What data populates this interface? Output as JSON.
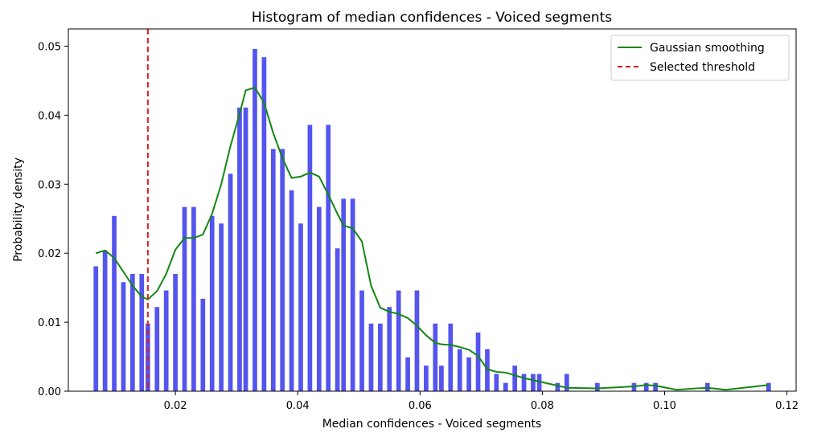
{
  "chart_data": {
    "type": "bar",
    "title": "Histogram of median confidences - Voiced segments",
    "xlabel": "Median confidences - Voiced segments",
    "ylabel": "Probability density",
    "xlim": [
      0.0025,
      0.1215
    ],
    "ylim": [
      0,
      0.0525
    ],
    "xticks": [
      0.02,
      0.04,
      0.06,
      0.08,
      0.1,
      0.12
    ],
    "xtick_labels": [
      "0.02",
      "0.04",
      "0.06",
      "0.08",
      "0.10",
      "0.12"
    ],
    "yticks": [
      0.0,
      0.01,
      0.02,
      0.03,
      0.04,
      0.05
    ],
    "ytick_labels": [
      "0.00",
      "0.01",
      "0.02",
      "0.03",
      "0.04",
      "0.05"
    ],
    "grid": false,
    "legend_position": "top-right",
    "bar_color": "#4b4bee",
    "bar_width": 0.00075,
    "bars": {
      "x": [
        0.007,
        0.0085,
        0.01,
        0.0115,
        0.013,
        0.0145,
        0.0155,
        0.017,
        0.0185,
        0.02,
        0.0215,
        0.023,
        0.0245,
        0.026,
        0.0275,
        0.029,
        0.0305,
        0.0315,
        0.033,
        0.0345,
        0.036,
        0.0375,
        0.039,
        0.0405,
        0.042,
        0.0435,
        0.045,
        0.0465,
        0.0475,
        0.049,
        0.0505,
        0.052,
        0.0535,
        0.055,
        0.0565,
        0.058,
        0.0595,
        0.061,
        0.0625,
        0.0635,
        0.065,
        0.0665,
        0.068,
        0.0695,
        0.071,
        0.0725,
        0.074,
        0.0755,
        0.077,
        0.0785,
        0.0795,
        0.0825,
        0.084,
        0.089,
        0.095,
        0.097,
        0.0985,
        0.107,
        0.117
      ],
      "heights": [
        0.0181,
        0.0204,
        0.0254,
        0.0158,
        0.017,
        0.017,
        0.0098,
        0.0122,
        0.0146,
        0.017,
        0.0267,
        0.0267,
        0.0134,
        0.0254,
        0.0243,
        0.0315,
        0.0411,
        0.0411,
        0.0496,
        0.0484,
        0.0351,
        0.0351,
        0.0291,
        0.0243,
        0.0386,
        0.0267,
        0.0386,
        0.0207,
        0.0279,
        0.0279,
        0.0146,
        0.0098,
        0.0098,
        0.0122,
        0.0146,
        0.0049,
        0.0146,
        0.0037,
        0.0098,
        0.0037,
        0.0098,
        0.0061,
        0.0049,
        0.0085,
        0.0061,
        0.0025,
        0.0012,
        0.0037,
        0.0025,
        0.0025,
        0.0025,
        0.0012,
        0.0025,
        0.0012,
        0.0012,
        0.0012,
        0.0012,
        0.0012,
        0.0012
      ]
    },
    "series": [
      {
        "name": "Gaussian smoothing",
        "style": "solid",
        "color": "#138613",
        "x": [
          0.007,
          0.0085,
          0.01,
          0.0115,
          0.013,
          0.0145,
          0.0155,
          0.017,
          0.0185,
          0.02,
          0.0215,
          0.023,
          0.0245,
          0.026,
          0.0275,
          0.029,
          0.0305,
          0.0315,
          0.033,
          0.0345,
          0.036,
          0.0375,
          0.039,
          0.0405,
          0.042,
          0.0435,
          0.045,
          0.0465,
          0.0475,
          0.049,
          0.0505,
          0.052,
          0.0535,
          0.055,
          0.0565,
          0.058,
          0.0595,
          0.061,
          0.0625,
          0.0635,
          0.065,
          0.0665,
          0.068,
          0.0695,
          0.071,
          0.0725,
          0.074,
          0.0755,
          0.077,
          0.0785,
          0.0795,
          0.0825,
          0.084,
          0.089,
          0.095,
          0.097,
          0.0985,
          0.102,
          0.105,
          0.107,
          0.11,
          0.117
        ],
        "y": [
          0.02,
          0.0204,
          0.0193,
          0.0173,
          0.0153,
          0.0137,
          0.0133,
          0.0145,
          0.017,
          0.0205,
          0.0222,
          0.0222,
          0.0227,
          0.0257,
          0.03,
          0.0355,
          0.0402,
          0.0436,
          0.044,
          0.0418,
          0.0374,
          0.0338,
          0.0309,
          0.0311,
          0.0317,
          0.0311,
          0.0285,
          0.0257,
          0.024,
          0.0236,
          0.0217,
          0.0153,
          0.0121,
          0.0115,
          0.0112,
          0.0106,
          0.0095,
          0.0081,
          0.007,
          0.0068,
          0.0067,
          0.0064,
          0.006,
          0.0051,
          0.0032,
          0.0028,
          0.0027,
          0.0023,
          0.0019,
          0.0016,
          0.0014,
          0.0008,
          0.0005,
          0.0004,
          0.0007,
          0.0009,
          0.0008,
          0.0002,
          0.0004,
          0.0005,
          0.0002,
          0.0009
        ]
      },
      {
        "name": "Selected threshold",
        "style": "dashed",
        "color": "#dd1f1f",
        "x_value": 0.0155
      }
    ]
  }
}
